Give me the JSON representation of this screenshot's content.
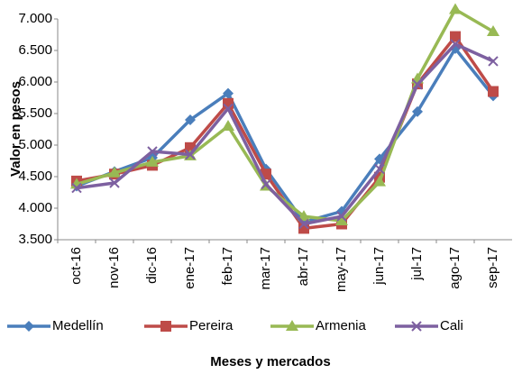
{
  "chart_data": {
    "type": "line",
    "y_label": "Valor en pesos",
    "x_label": "Meses y mercados",
    "categories": [
      "oct-16",
      "nov-16",
      "dic-16",
      "ene-17",
      "feb-17",
      "mar-17",
      "abr-17",
      "may-17",
      "jun-17",
      "jul-17",
      "ago-17",
      "sep-17"
    ],
    "series": [
      {
        "name": "Medellín",
        "color": "#4a7ebb",
        "marker": "diamond",
        "values": [
          4350,
          4580,
          4800,
          5400,
          5820,
          4620,
          3780,
          3950,
          4780,
          5530,
          6530,
          5780
        ]
      },
      {
        "name": "Pereira",
        "color": "#be4b48",
        "marker": "square",
        "values": [
          4430,
          4540,
          4680,
          4960,
          5660,
          4540,
          3680,
          3750,
          4490,
          5970,
          6720,
          5850
        ]
      },
      {
        "name": "Armenia",
        "color": "#98b954",
        "marker": "triangle",
        "values": [
          4380,
          4560,
          4730,
          4830,
          5300,
          4350,
          3870,
          3800,
          4420,
          6050,
          7150,
          6800
        ]
      },
      {
        "name": "Cali",
        "color": "#7d60a0",
        "marker": "x",
        "values": [
          4320,
          4400,
          4900,
          4850,
          5580,
          4380,
          3750,
          3870,
          4620,
          5960,
          6600,
          6330
        ]
      }
    ],
    "ylim": [
      3500,
      7000
    ],
    "yticks": [
      {
        "value": 3500,
        "label": "3.500"
      },
      {
        "value": 4000,
        "label": "4.000"
      },
      {
        "value": 4500,
        "label": "4.500"
      },
      {
        "value": 5000,
        "label": "5.000"
      },
      {
        "value": 5500,
        "label": "5.500"
      },
      {
        "value": 6000,
        "label": "6.000"
      },
      {
        "value": 6500,
        "label": "6.500"
      },
      {
        "value": 7000,
        "label": "7.000"
      }
    ],
    "grid": false,
    "legend": "bottom"
  }
}
